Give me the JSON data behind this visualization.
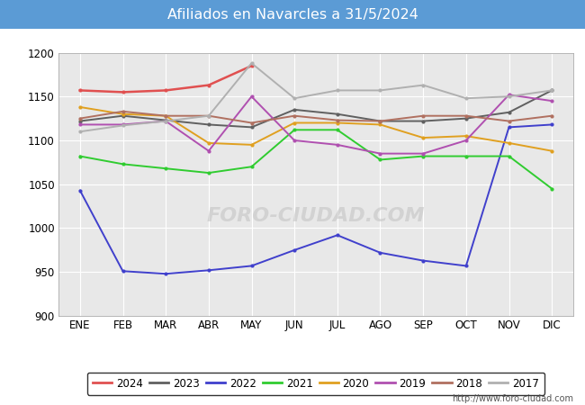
{
  "title": "Afiliados en Navarcles a 31/5/2024",
  "title_bg": "#5b9bd5",
  "title_color": "white",
  "months": [
    "ENE",
    "FEB",
    "MAR",
    "ABR",
    "MAY",
    "JUN",
    "JUL",
    "AGO",
    "SEP",
    "OCT",
    "NOV",
    "DIC"
  ],
  "ylim": [
    900,
    1200
  ],
  "yticks": [
    900,
    950,
    1000,
    1050,
    1100,
    1150,
    1200
  ],
  "series": {
    "2024": {
      "color": "#e05050",
      "data": [
        1157,
        1155,
        1157,
        1163,
        1185,
        null,
        null,
        null,
        null,
        null,
        null,
        null
      ]
    },
    "2023": {
      "color": "#606060",
      "data": [
        1122,
        1128,
        1123,
        1118,
        1115,
        1135,
        1130,
        1122,
        1122,
        1125,
        1132,
        1157
      ]
    },
    "2022": {
      "color": "#4040cc",
      "data": [
        1043,
        951,
        948,
        952,
        957,
        975,
        992,
        972,
        963,
        957,
        1115,
        1118
      ]
    },
    "2021": {
      "color": "#30cc30",
      "data": [
        1082,
        1073,
        1068,
        1063,
        1070,
        1112,
        1112,
        1078,
        1082,
        1082,
        1082,
        1045
      ]
    },
    "2020": {
      "color": "#e0a020",
      "data": [
        1138,
        1130,
        1128,
        1097,
        1095,
        1120,
        1120,
        1118,
        1103,
        1105,
        1097,
        1088
      ]
    },
    "2019": {
      "color": "#b050b0",
      "data": [
        1118,
        1118,
        1122,
        1088,
        1150,
        1100,
        1095,
        1085,
        1085,
        1100,
        1152,
        1145
      ]
    },
    "2018": {
      "color": "#b07060",
      "data": [
        1125,
        1133,
        1128,
        1128,
        1120,
        1128,
        1123,
        1122,
        1128,
        1128,
        1122,
        1128
      ]
    },
    "2017": {
      "color": "#b0b0b0",
      "data": [
        1110,
        1117,
        1122,
        1128,
        1188,
        1148,
        1157,
        1157,
        1163,
        1148,
        1150,
        1157
      ]
    }
  },
  "footer_url": "http://www.foro-ciudad.com"
}
